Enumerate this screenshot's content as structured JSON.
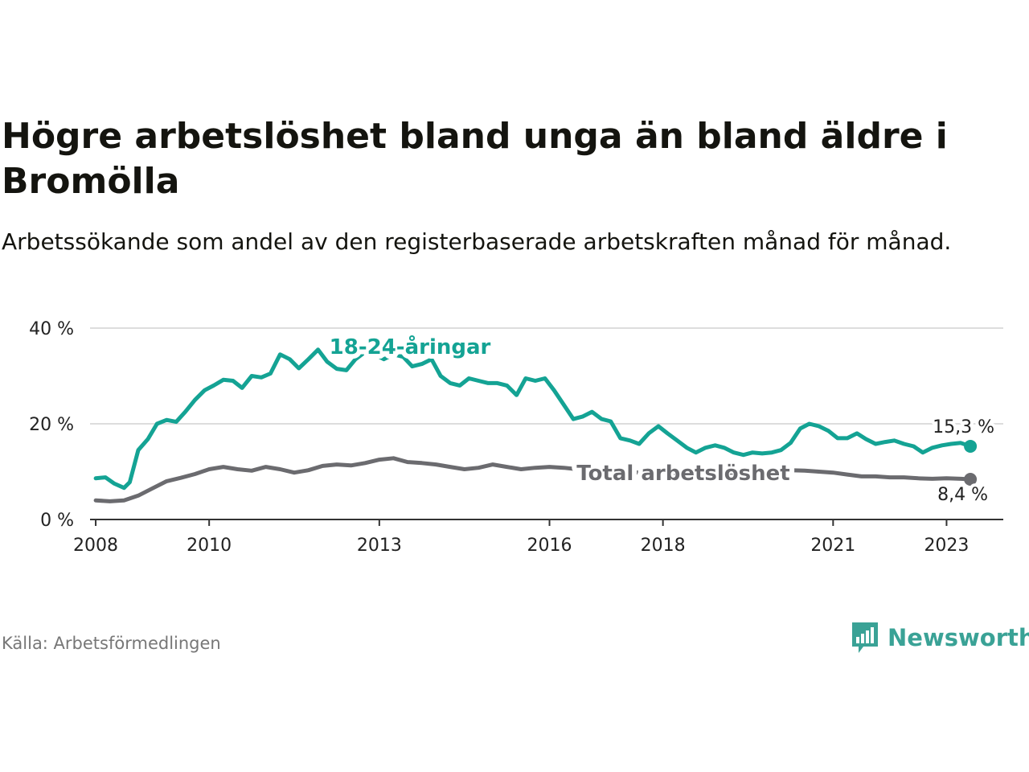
{
  "header": {
    "title": "Högre arbetslöshet bland unga än bland äldre i Bromölla",
    "subtitle": "Arbetssökande som andel av den registerbaserade arbetskraften månad för månad."
  },
  "footer": {
    "source": "Källa: Arbetsförmedlingen",
    "brand": "Newsworthy",
    "brand_icon": "bar-chart-logo-icon"
  },
  "colors": {
    "youth": "#14a394",
    "total": "#6b6b6f",
    "grid": "#dddddd"
  },
  "chart_data": {
    "type": "line",
    "title": "Högre arbetslöshet bland unga än bland äldre i Bromölla",
    "ylabel": "",
    "xlabel": "",
    "ylim": [
      0,
      40
    ],
    "xlim": [
      2007.9,
      2024.0
    ],
    "y_ticks": [
      {
        "value": 0,
        "label": "0 %"
      },
      {
        "value": 20,
        "label": "20 %"
      },
      {
        "value": 40,
        "label": "40 %"
      }
    ],
    "x_ticks": [
      {
        "value": 2008,
        "label": "2008"
      },
      {
        "value": 2010,
        "label": "2010"
      },
      {
        "value": 2013,
        "label": "2013"
      },
      {
        "value": 2016,
        "label": "2016"
      },
      {
        "value": 2018,
        "label": "2018"
      },
      {
        "value": 2021,
        "label": "2021"
      },
      {
        "value": 2023,
        "label": "2023"
      }
    ],
    "series": [
      {
        "name": "18-24-åringar",
        "label": "18-24-åringar",
        "end_label": "15,3 %",
        "color": "#14a394",
        "x": [
          2008.0,
          2008.17,
          2008.33,
          2008.5,
          2008.6,
          2008.75,
          2008.92,
          2009.08,
          2009.25,
          2009.42,
          2009.58,
          2009.75,
          2009.92,
          2010.08,
          2010.25,
          2010.42,
          2010.58,
          2010.75,
          2010.92,
          2011.08,
          2011.25,
          2011.42,
          2011.58,
          2011.75,
          2011.92,
          2012.08,
          2012.25,
          2012.42,
          2012.58,
          2012.75,
          2012.92,
          2013.08,
          2013.25,
          2013.42,
          2013.58,
          2013.75,
          2013.92,
          2014.08,
          2014.25,
          2014.42,
          2014.58,
          2014.75,
          2014.92,
          2015.08,
          2015.25,
          2015.42,
          2015.58,
          2015.75,
          2015.92,
          2016.08,
          2016.25,
          2016.42,
          2016.58,
          2016.75,
          2016.92,
          2017.08,
          2017.25,
          2017.42,
          2017.58,
          2017.75,
          2017.92,
          2018.08,
          2018.25,
          2018.42,
          2018.58,
          2018.75,
          2018.92,
          2019.08,
          2019.25,
          2019.42,
          2019.58,
          2019.75,
          2019.92,
          2020.08,
          2020.25,
          2020.42,
          2020.58,
          2020.75,
          2020.92,
          2021.08,
          2021.25,
          2021.42,
          2021.58,
          2021.75,
          2021.92,
          2022.08,
          2022.25,
          2022.42,
          2022.58,
          2022.75,
          2022.92,
          2023.08,
          2023.25,
          2023.42
        ],
        "values": [
          8.6,
          8.8,
          7.5,
          6.6,
          7.8,
          14.5,
          16.8,
          20.0,
          20.8,
          20.4,
          22.5,
          25.0,
          27.0,
          28.0,
          29.2,
          29.0,
          27.5,
          30.0,
          29.7,
          30.5,
          34.5,
          33.5,
          31.6,
          33.5,
          35.5,
          33.0,
          31.5,
          31.2,
          33.5,
          35.0,
          34.5,
          33.5,
          34.5,
          34.0,
          32.0,
          32.5,
          33.5,
          30.0,
          28.5,
          28.0,
          29.5,
          29.0,
          28.5,
          28.5,
          28.0,
          26.0,
          29.5,
          29.0,
          29.5,
          27.0,
          24.0,
          21.0,
          21.5,
          22.5,
          21.0,
          20.5,
          17.0,
          16.5,
          15.8,
          18.0,
          19.5,
          18.0,
          16.5,
          15.0,
          14.0,
          15.0,
          15.5,
          15.0,
          14.0,
          13.5,
          14.0,
          13.8,
          14.0,
          14.5,
          16.0,
          19.0,
          20.0,
          19.5,
          18.5,
          17.0,
          17.0,
          18.0,
          16.8,
          15.8,
          16.2,
          16.5,
          15.8,
          15.3,
          14.0,
          15.0,
          15.5,
          15.8,
          16.0,
          15.3
        ]
      },
      {
        "name": "Total arbetslöshet",
        "label": "Total arbetslöshet",
        "end_label": "8,4 %",
        "color": "#6b6b6f",
        "x": [
          2008.0,
          2008.25,
          2008.5,
          2008.75,
          2009.0,
          2009.25,
          2009.5,
          2009.75,
          2010.0,
          2010.25,
          2010.5,
          2010.75,
          2011.0,
          2011.25,
          2011.5,
          2011.75,
          2012.0,
          2012.25,
          2012.5,
          2012.75,
          2013.0,
          2013.25,
          2013.5,
          2013.75,
          2014.0,
          2014.25,
          2014.5,
          2014.75,
          2015.0,
          2015.25,
          2015.5,
          2015.75,
          2016.0,
          2016.25,
          2016.5,
          2016.75,
          2017.0,
          2017.25,
          2017.5,
          2017.75,
          2018.0,
          2018.25,
          2018.5,
          2018.75,
          2019.0,
          2019.25,
          2019.5,
          2019.75,
          2020.0,
          2020.25,
          2020.5,
          2020.75,
          2021.0,
          2021.25,
          2021.5,
          2021.75,
          2022.0,
          2022.25,
          2022.5,
          2022.75,
          2023.0,
          2023.25,
          2023.42
        ],
        "values": [
          4.0,
          3.8,
          4.0,
          5.0,
          6.5,
          8.0,
          8.7,
          9.5,
          10.5,
          11.0,
          10.5,
          10.2,
          11.0,
          10.5,
          9.8,
          10.3,
          11.2,
          11.5,
          11.3,
          11.8,
          12.5,
          12.8,
          12.0,
          11.8,
          11.5,
          11.0,
          10.5,
          10.8,
          11.5,
          11.0,
          10.5,
          10.8,
          11.0,
          10.8,
          10.5,
          10.3,
          10.5,
          10.2,
          9.8,
          10.0,
          9.8,
          9.6,
          9.6,
          9.7,
          9.8,
          9.8,
          9.6,
          9.8,
          10.0,
          10.3,
          10.2,
          10.0,
          9.8,
          9.4,
          9.0,
          9.0,
          8.8,
          8.8,
          8.6,
          8.5,
          8.6,
          8.5,
          8.4
        ]
      }
    ]
  }
}
